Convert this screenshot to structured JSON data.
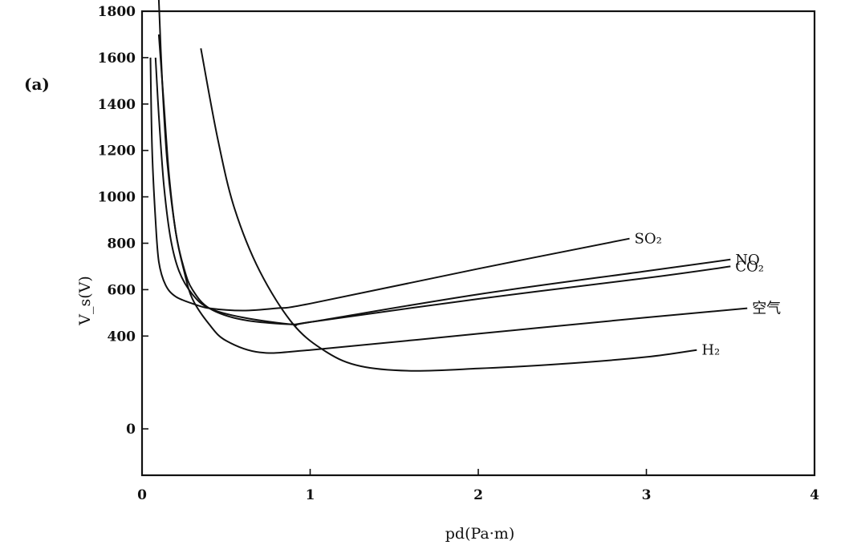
{
  "panel_label": "(a)",
  "chart_data": {
    "type": "line",
    "title": "",
    "xlabel": "pd(Pa·m)",
    "ylabel": "V_s(V)",
    "xlim": [
      0,
      4
    ],
    "ylim": [
      -200,
      1800
    ],
    "x_ticks": [
      "0",
      "1",
      "2",
      "3",
      "4"
    ],
    "y_ticks": [
      "0",
      "400",
      "600",
      "800",
      "1000",
      "1200",
      "1400",
      "1600",
      "1800"
    ],
    "grid": false,
    "series": [
      {
        "name": "空气",
        "x": [
          0.1,
          0.12,
          0.15,
          0.2,
          0.25,
          0.3,
          0.4,
          0.5,
          0.7,
          1.0,
          2.0,
          3.0,
          3.6
        ],
        "y": [
          1850,
          1500,
          1150,
          850,
          680,
          560,
          450,
          380,
          330,
          340,
          410,
          480,
          520
        ]
      },
      {
        "name": "CO₂",
        "x": [
          0.1,
          0.13,
          0.16,
          0.2,
          0.25,
          0.3,
          0.4,
          0.6,
          0.9,
          1.0,
          2.0,
          3.0,
          3.5
        ],
        "y": [
          1700,
          1400,
          1100,
          850,
          690,
          600,
          520,
          470,
          450,
          460,
          560,
          650,
          700
        ]
      },
      {
        "name": "H₂",
        "x": [
          0.35,
          0.45,
          0.55,
          0.7,
          0.9,
          1.1,
          1.3,
          1.6,
          2.0,
          2.5,
          3.0,
          3.3
        ],
        "y": [
          1640,
          1250,
          950,
          680,
          450,
          330,
          270,
          250,
          260,
          280,
          310,
          340
        ]
      },
      {
        "name": "NO",
        "x": [
          0.08,
          0.1,
          0.13,
          0.17,
          0.22,
          0.3,
          0.4,
          0.6,
          0.9,
          1.0,
          2.0,
          3.0,
          3.5
        ],
        "y": [
          1600,
          1350,
          1050,
          820,
          680,
          580,
          520,
          480,
          450,
          460,
          580,
          680,
          730
        ]
      },
      {
        "name": "SO₂",
        "x": [
          0.05,
          0.06,
          0.08,
          0.1,
          0.14,
          0.2,
          0.3,
          0.4,
          0.6,
          0.8,
          1.0,
          2.0,
          2.9
        ],
        "y": [
          1600,
          1200,
          900,
          720,
          620,
          570,
          540,
          520,
          510,
          520,
          540,
          690,
          820
        ]
      }
    ],
    "legend": "inline labels at curve ends"
  }
}
